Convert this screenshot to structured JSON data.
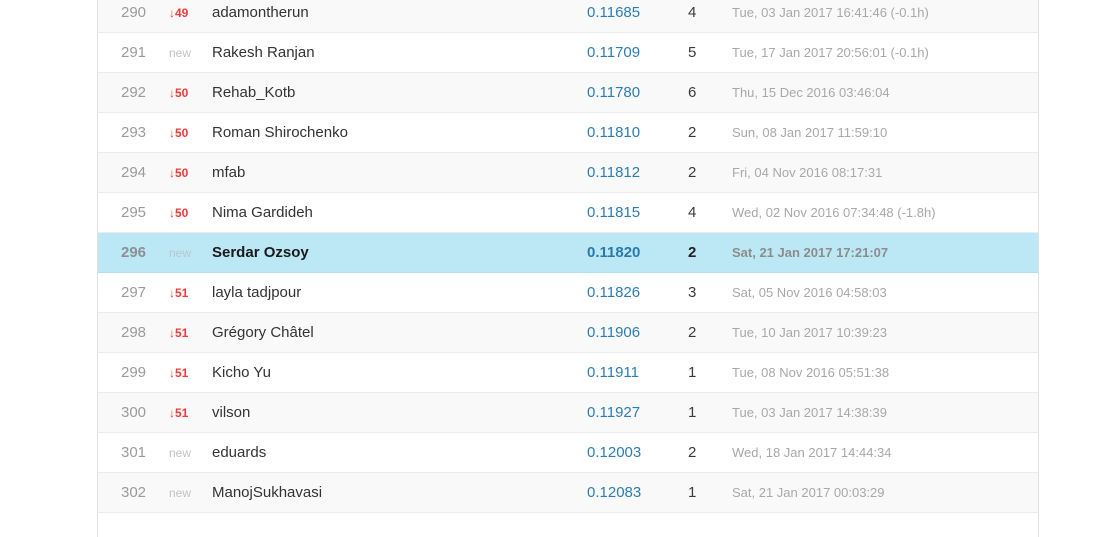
{
  "ui": {
    "down_arrow_glyph": "↓",
    "colors": {
      "highlight_row_bg": "#bce8f6",
      "stripe_row_bg": "#f9f9f9",
      "score_link_blue": "#2e7cb0",
      "rank_drop_red": "#ee3a3a",
      "new_label_gray": "#c2c2c2",
      "rank_gray": "#9b9b9b",
      "date_gray": "#a8a8a8",
      "name_dark": "#333333"
    }
  },
  "leaderboard": {
    "rows": [
      {
        "rank": "290",
        "change_type": "down",
        "change_value": "49",
        "name": "adamontherun",
        "score": "0.11685",
        "entries": "4",
        "last_submission": "Tue, 03 Jan 2017 16:41:46 (-0.1h)",
        "highlighted": false
      },
      {
        "rank": "291",
        "change_type": "new",
        "change_value": "new",
        "name": "Rakesh Ranjan",
        "score": "0.11709",
        "entries": "5",
        "last_submission": "Tue, 17 Jan 2017 20:56:01 (-0.1h)",
        "highlighted": false
      },
      {
        "rank": "292",
        "change_type": "down",
        "change_value": "50",
        "name": "Rehab_Kotb",
        "score": "0.11780",
        "entries": "6",
        "last_submission": "Thu, 15 Dec 2016 03:46:04",
        "highlighted": false
      },
      {
        "rank": "293",
        "change_type": "down",
        "change_value": "50",
        "name": "Roman Shirochenko",
        "score": "0.11810",
        "entries": "2",
        "last_submission": "Sun, 08 Jan 2017 11:59:10",
        "highlighted": false
      },
      {
        "rank": "294",
        "change_type": "down",
        "change_value": "50",
        "name": "mfab",
        "score": "0.11812",
        "entries": "2",
        "last_submission": "Fri, 04 Nov 2016 08:17:31",
        "highlighted": false
      },
      {
        "rank": "295",
        "change_type": "down",
        "change_value": "50",
        "name": "Nima Gardideh",
        "score": "0.11815",
        "entries": "4",
        "last_submission": "Wed, 02 Nov 2016 07:34:48 (-1.8h)",
        "highlighted": false
      },
      {
        "rank": "296",
        "change_type": "new",
        "change_value": "new",
        "name": "Serdar Ozsoy",
        "score": "0.11820",
        "entries": "2",
        "last_submission": "Sat, 21 Jan 2017 17:21:07",
        "highlighted": true
      },
      {
        "rank": "297",
        "change_type": "down",
        "change_value": "51",
        "name": "layla tadjpour",
        "score": "0.11826",
        "entries": "3",
        "last_submission": "Sat, 05 Nov 2016 04:58:03",
        "highlighted": false
      },
      {
        "rank": "298",
        "change_type": "down",
        "change_value": "51",
        "name": "Grégory Châtel",
        "score": "0.11906",
        "entries": "2",
        "last_submission": "Tue, 10 Jan 2017 10:39:23",
        "highlighted": false
      },
      {
        "rank": "299",
        "change_type": "down",
        "change_value": "51",
        "name": "Kicho Yu",
        "score": "0.11911",
        "entries": "1",
        "last_submission": "Tue, 08 Nov 2016 05:51:38",
        "highlighted": false
      },
      {
        "rank": "300",
        "change_type": "down",
        "change_value": "51",
        "name": "vilson",
        "score": "0.11927",
        "entries": "1",
        "last_submission": "Tue, 03 Jan 2017 14:38:39",
        "highlighted": false
      },
      {
        "rank": "301",
        "change_type": "new",
        "change_value": "new",
        "name": "eduards",
        "score": "0.12003",
        "entries": "2",
        "last_submission": "Wed, 18 Jan 2017 14:44:34",
        "highlighted": false
      },
      {
        "rank": "302",
        "change_type": "new",
        "change_value": "new",
        "name": "ManojSukhavasi",
        "score": "0.12083",
        "entries": "1",
        "last_submission": "Sat, 21 Jan 2017 00:03:29",
        "highlighted": false
      }
    ]
  }
}
